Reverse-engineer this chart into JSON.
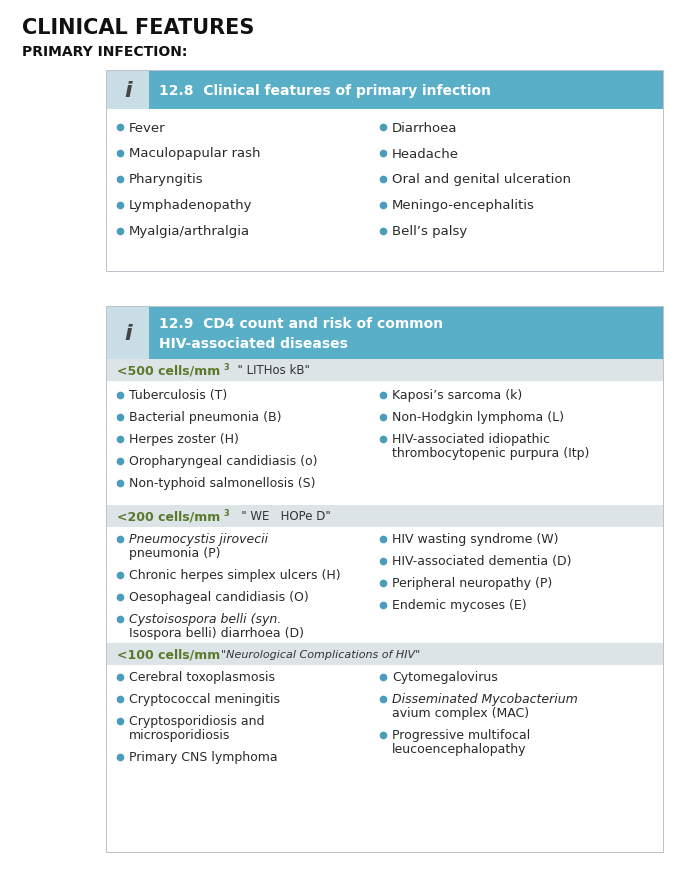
{
  "title": "CLINICAL FEATURES",
  "subtitle": "PRIMARY INFECTION:",
  "bg_color": "#ffffff",
  "header_bg": "#5aafc8",
  "icon_bg": "#c8dde6",
  "body_bg": "#ffffff",
  "section_bg": "#dce4e8",
  "border_color": "#b0b8c0",
  "bullet_color": "#4a9cbd",
  "section_label_color": "#5a7a2a",
  "body_text_color": "#2a2a2a",
  "header_text_color": "#ffffff",
  "icon_text_color": "#444444",
  "box1_title": "12.8  Clinical features of primary infection",
  "box2_title_line1": "12.9  CD4 count and risk of common",
  "box2_title_line2": "HIV-associated diseases",
  "box1_left": [
    "Fever",
    "Maculopapular rash",
    "Pharyngitis",
    "Lymphadenopathy",
    "Myalgia/arthralgia"
  ],
  "box1_right": [
    "Diarrhoea",
    "Headache",
    "Oral and genital ulceration",
    "Meningo-encephalitis",
    "Bell’s palsy"
  ],
  "section500_label": "<500 cells/mm",
  "section500_note": "  \" LITHos kB\"",
  "section500_left": [
    "Tuberculosis (T)",
    "Bacterial pneumonia (B)",
    "Herpes zoster (H)",
    "Oropharyngeal candidiasis (o)",
    "Non-typhoid salmonellosis (S)"
  ],
  "section500_right_single": [
    "Kaposi’s sarcoma (k)",
    "Non-Hodgkin lymphoma (L)"
  ],
  "section500_right_wrap_line1": "HIV-associated idiopathic",
  "section500_right_wrap_line2": "thrombocytopenic purpura (Itp)",
  "section200_label": "<200 cells/mm",
  "section200_note": "   \" WE   HOPe D\"",
  "section200_left_line1a": "Pneumocystis jirovecii",
  "section200_left_line1b": "pneumonia (P)",
  "section200_left_rest": [
    "Chronic herpes simplex ulcers (H)",
    "Oesophageal candidiasis (O)"
  ],
  "section200_left_wrap_line1": "Cystoisospora belli (syn.",
  "section200_left_wrap_line2": "Isospora belli) diarrhoea (D)",
  "section200_right": [
    "HIV wasting syndrome (W)",
    "HIV-associated dementia (D)",
    "Peripheral neuropathy (P)",
    "Endemic mycoses (E)"
  ],
  "section100_label": "<100 cells/mm",
  "section100_note": "  \"Neurological Complications of HIV\"",
  "section100_left": [
    "Cerebral toxoplasmosis",
    "Cryptococcal meningitis"
  ],
  "section100_left_wrap_line1": "Cryptosporidiosis and",
  "section100_left_wrap_line2": "microsporidiosis",
  "section100_left_last": "Primary CNS lymphoma",
  "section100_right_first": "Cytomegalovirus",
  "section100_right_wrap1_line1": "Disseminated Mycobacterium",
  "section100_right_wrap1_line2": "avium complex (MAC)",
  "section100_right_wrap2_line1": "Progressive multifocal",
  "section100_right_wrap2_line2": "leucoencephalopathy"
}
